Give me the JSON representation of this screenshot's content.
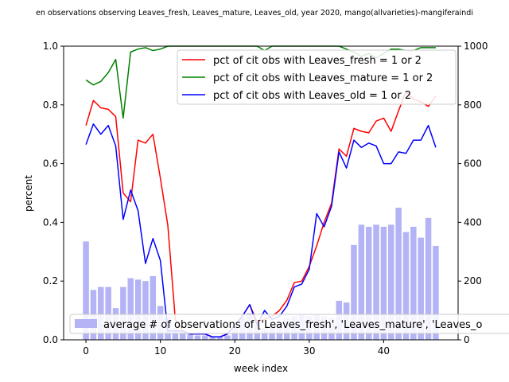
{
  "chart_data": {
    "type": "line",
    "title": "en observations observing Leaves_fresh, Leaves_mature, Leaves_old, year 2020, mango(allvarieties)-mangiferaindi",
    "xlabel": "week index",
    "ylabel": "percent",
    "y2label": "",
    "xlim": [
      -3,
      50
    ],
    "ylim": [
      0,
      1
    ],
    "y2lim": [
      0,
      1000
    ],
    "x_ticks": [
      0,
      10,
      20,
      30,
      40
    ],
    "y_ticks": [
      0.0,
      0.2,
      0.4,
      0.6,
      0.8,
      1.0
    ],
    "y2_ticks": [
      0,
      200,
      400,
      600,
      800,
      1000
    ],
    "x": [
      0,
      1,
      2,
      3,
      4,
      5,
      6,
      7,
      8,
      9,
      10,
      11,
      12,
      13,
      14,
      15,
      16,
      17,
      18,
      19,
      20,
      21,
      22,
      23,
      24,
      25,
      26,
      27,
      28,
      29,
      30,
      31,
      32,
      33,
      34,
      35,
      36,
      37,
      38,
      39,
      40,
      41,
      42,
      43,
      44,
      45,
      46,
      47
    ],
    "series": [
      {
        "name": "pct of cit obs with Leaves_fresh = 1 or 2",
        "color": "#ff0000",
        "values": [
          0.73,
          0.815,
          0.79,
          0.785,
          0.76,
          0.5,
          0.47,
          0.68,
          0.67,
          0.7,
          0.55,
          0.39,
          0.07,
          0.03,
          0.02,
          0.02,
          0.02,
          0.01,
          0.01,
          0.02,
          0.05,
          0.08,
          0.12,
          0.06,
          0.07,
          0.08,
          0.1,
          0.135,
          0.195,
          0.2,
          0.25,
          0.32,
          0.4,
          0.465,
          0.65,
          0.625,
          0.72,
          0.71,
          0.705,
          0.745,
          0.755,
          0.71,
          0.78,
          0.845,
          0.82,
          0.81,
          0.795,
          0.83
        ]
      },
      {
        "name": "pct of cit obs with Leaves_mature = 1 or 2",
        "color": "#008000",
        "values": [
          0.885,
          0.868,
          0.88,
          0.91,
          0.955,
          0.755,
          0.98,
          0.99,
          0.995,
          0.985,
          0.99,
          1.0,
          1.0,
          1.0,
          1.0,
          1.0,
          1.0,
          1.0,
          1.0,
          1.0,
          1.0,
          1.0,
          1.0,
          1.0,
          0.985,
          1.0,
          1.0,
          1.0,
          1.0,
          1.0,
          1.0,
          1.0,
          1.0,
          1.0,
          1.0,
          0.99,
          0.98,
          0.965,
          0.975,
          0.96,
          0.975,
          0.99,
          0.99,
          0.985,
          0.985,
          0.995,
          0.995,
          0.995
        ]
      },
      {
        "name": "pct of cit obs with Leaves_old = 1 or 2",
        "color": "#0000ff",
        "values": [
          0.665,
          0.735,
          0.7,
          0.73,
          0.66,
          0.41,
          0.51,
          0.44,
          0.26,
          0.345,
          0.27,
          0.03,
          0.03,
          0.03,
          0.02,
          0.02,
          0.02,
          0.01,
          0.01,
          0.02,
          0.05,
          0.08,
          0.12,
          0.05,
          0.1,
          0.07,
          0.08,
          0.115,
          0.18,
          0.19,
          0.24,
          0.43,
          0.385,
          0.455,
          0.64,
          0.585,
          0.68,
          0.655,
          0.67,
          0.66,
          0.6,
          0.6,
          0.64,
          0.635,
          0.68,
          0.68,
          0.73,
          0.655
        ]
      }
    ],
    "bars": {
      "name": "average # of observations of ['Leaves_fresh', 'Leaves_mature', 'Leaves_o",
      "color": "#b3b3f5",
      "axis": "right",
      "values": [
        335,
        170,
        180,
        180,
        108,
        180,
        210,
        205,
        200,
        217,
        115,
        77,
        40,
        30,
        20,
        15,
        15,
        10,
        10,
        15,
        40,
        75,
        90,
        50,
        40,
        50,
        60,
        75,
        80,
        85,
        80,
        87,
        80,
        75,
        133,
        127,
        323,
        392,
        385,
        392,
        385,
        392,
        450,
        367,
        385,
        348,
        415,
        320
      ]
    },
    "legend": {
      "placement": "top-right"
    },
    "grid": false
  }
}
